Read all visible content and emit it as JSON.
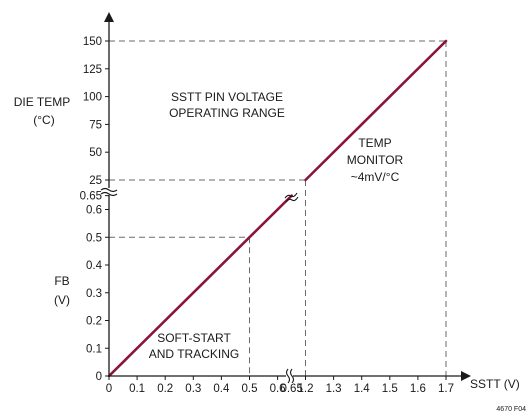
{
  "chart_data": {
    "type": "line",
    "title": "",
    "xlabel": "SSTT (V)",
    "ylabel_upper": [
      "DIE TEMP",
      "(°C)"
    ],
    "ylabel_lower": [
      "FB",
      "(V)"
    ],
    "x_ticks": [
      "0",
      "0.1",
      "0.2",
      "0.3",
      "0.4",
      "0.5",
      "0.6",
      "0.65",
      "1.2",
      "1.3",
      "1.4",
      "1.5",
      "1.6",
      "1.7"
    ],
    "y_ticks_lower": [
      "0",
      "0.1",
      "0.2",
      "0.3",
      "0.4",
      "0.5",
      "0.6",
      "0.65"
    ],
    "y_ticks_upper": [
      "25",
      "50",
      "75",
      "100",
      "125",
      "150"
    ],
    "axis_breaks": {
      "x": "between 0.65 and 1.2",
      "y": "between 0.65 and 25"
    },
    "series": [
      {
        "color": "#8a1538",
        "segments": [
          {
            "x": [
              0,
              0.65
            ],
            "y": [
              0,
              0.65
            ],
            "y_unit": "V"
          },
          {
            "x": [
              1.2,
              1.7
            ],
            "y": [
              25,
              150
            ],
            "y_unit": "°C"
          }
        ]
      }
    ],
    "reference_lines": [
      {
        "x": 0.5,
        "y": 0.5
      },
      {
        "x": 1.2,
        "y": 25
      },
      {
        "x": 1.7,
        "y": 150
      }
    ],
    "annotations": {
      "region_operating": [
        "SSTT PIN VOLTAGE",
        "OPERATING RANGE"
      ],
      "region_temp": [
        "TEMP",
        "MONITOR",
        "~4mV/°C"
      ],
      "region_soft": [
        "SOFT-START",
        "AND TRACKING"
      ]
    },
    "figure_code": "4670 F04",
    "grid": false,
    "legend": "none"
  }
}
